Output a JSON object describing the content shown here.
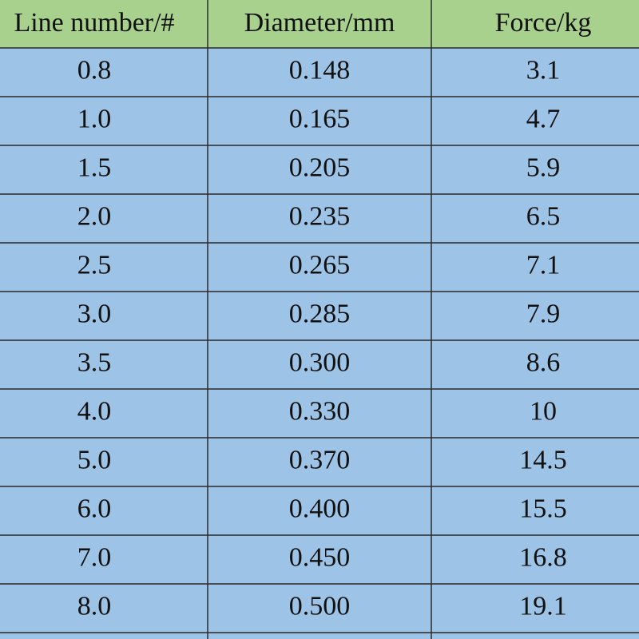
{
  "table": {
    "header": [
      "Line number/#",
      "Diameter/mm",
      "Force/kg"
    ],
    "rows": [
      [
        "0.8",
        "0.148",
        "3.1"
      ],
      [
        "1.0",
        "0.165",
        "4.7"
      ],
      [
        "1.5",
        "0.205",
        "5.9"
      ],
      [
        "2.0",
        "0.235",
        "6.5"
      ],
      [
        "2.5",
        "0.265",
        "7.1"
      ],
      [
        "3.0",
        "0.285",
        "7.9"
      ],
      [
        "3.5",
        "0.300",
        "8.6"
      ],
      [
        "4.0",
        "0.330",
        "10"
      ],
      [
        "5.0",
        "0.370",
        "14.5"
      ],
      [
        "6.0",
        "0.400",
        "15.5"
      ],
      [
        "7.0",
        "0.450",
        "16.8"
      ],
      [
        "8.0",
        "0.500",
        "19.1"
      ]
    ]
  }
}
